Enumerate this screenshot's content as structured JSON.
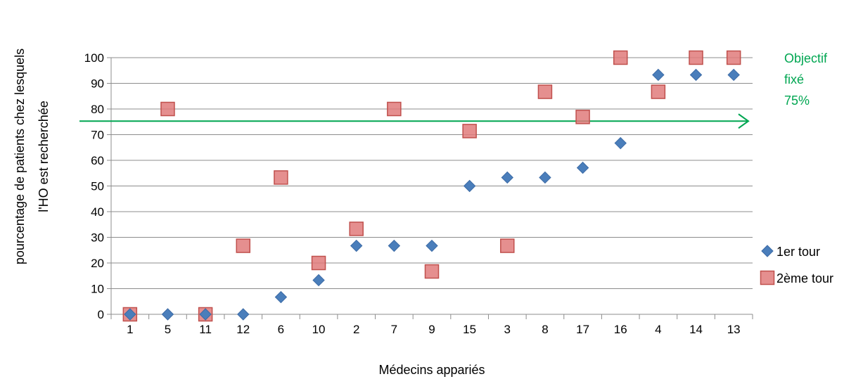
{
  "chart_data": {
    "type": "scatter",
    "title": "",
    "xlabel": "Médecins appariés",
    "ylabel_lines": [
      "pourcentage de patients chez lesquels",
      "l'HO est recherchée"
    ],
    "categories": [
      "1",
      "5",
      "11",
      "12",
      "6",
      "10",
      "2",
      "7",
      "9",
      "15",
      "3",
      "8",
      "17",
      "16",
      "4",
      "14",
      "13"
    ],
    "ylim": [
      0,
      100
    ],
    "yticks": [
      0,
      10,
      20,
      30,
      40,
      50,
      60,
      70,
      80,
      90,
      100
    ],
    "grid": true,
    "legend_position": "right",
    "series": [
      {
        "name": "1er tour",
        "marker": "diamond",
        "color": "#4a7ebb",
        "values": [
          0,
          0,
          0,
          0,
          6.7,
          13.3,
          26.7,
          26.7,
          26.7,
          50,
          53.3,
          53.3,
          57.1,
          66.7,
          93.3,
          93.3,
          93.3
        ]
      },
      {
        "name": "2ème tour",
        "marker": "square",
        "color": "#e07b7b",
        "values": [
          0,
          80,
          0,
          null,
          53.3,
          20,
          33.3,
          80,
          16.7,
          71.4,
          26.7,
          86.7,
          76.9,
          100,
          86.7,
          100,
          100
        ]
      }
    ],
    "extra_points": [
      {
        "series": 1,
        "category_index": 3,
        "value": 26.7
      }
    ],
    "target": {
      "value": 75,
      "label_lines": [
        "Objectif",
        "fixé",
        "75%"
      ],
      "color": "#00a651"
    }
  }
}
